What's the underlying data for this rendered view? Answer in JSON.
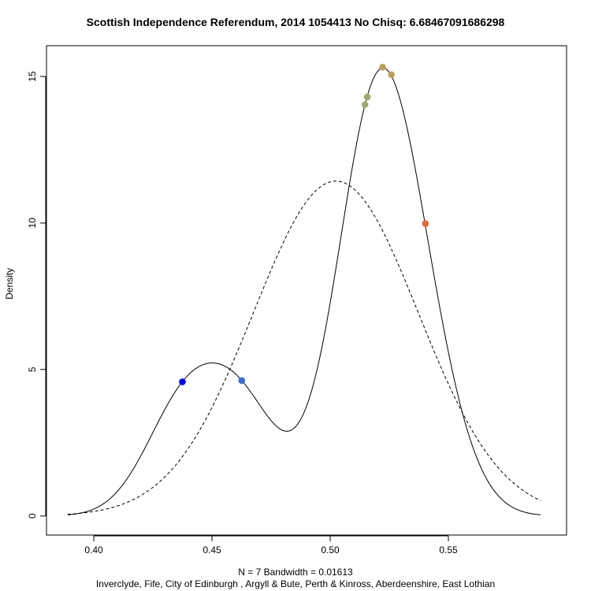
{
  "chart_data": {
    "type": "line",
    "title": "Scottish Independence Referendum, 2014 1054413 No Chisq: 6.68467091686298",
    "xlabel": "N = 7   Bandwidth = 0.01613",
    "ylabel": "Density",
    "caption": "Inverclyde, Fife, City of Edinburgh , Argyll & Bute, Perth & Kinross, Aberdeenshire, East Lothian",
    "xlim": [
      0.38,
      0.6
    ],
    "ylim": [
      -0.65,
      16.05
    ],
    "xticks": [
      "0.40",
      "0.45",
      "0.50",
      "0.55"
    ],
    "xtick_values": [
      0.4,
      0.45,
      0.5,
      0.55
    ],
    "yticks": [
      "0",
      "5",
      "10",
      "15"
    ],
    "ytick_values": [
      0,
      5,
      10,
      15
    ],
    "bandwidth": 0.01613,
    "density_x_range": [
      0.389,
      0.589
    ],
    "normal_curve": {
      "mean": 0.5024,
      "sd": 0.0349,
      "linestyle": "dashed"
    },
    "series": [
      {
        "type": "points",
        "points": [
          {
            "x": 0.4375,
            "y": 4.58,
            "color": "#0000ff"
          },
          {
            "x": 0.4626,
            "y": 4.62,
            "color": "#3a6fd8"
          },
          {
            "x": 0.5147,
            "y": 14.04,
            "color": "#9aab6c"
          },
          {
            "x": 0.5157,
            "y": 14.3,
            "color": "#9aab6c"
          },
          {
            "x": 0.5222,
            "y": 15.32,
            "color": "#bfa05a"
          },
          {
            "x": 0.5259,
            "y": 15.06,
            "color": "#bfa05a"
          },
          {
            "x": 0.5403,
            "y": 9.98,
            "color": "#e06a3a"
          }
        ]
      }
    ],
    "grid": false
  }
}
